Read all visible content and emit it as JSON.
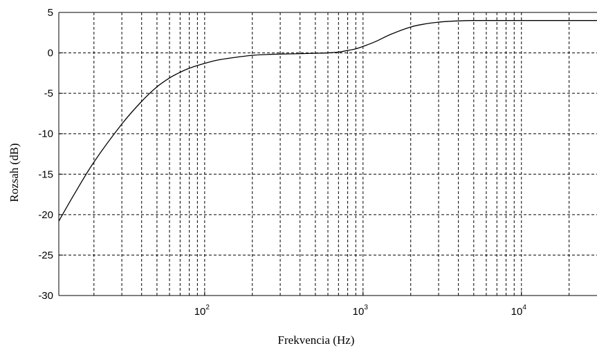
{
  "chart_data": {
    "type": "line",
    "title": "",
    "xlabel": "Frekvencia (Hz)",
    "ylabel": "Rozsah (dB)",
    "xscale": "log",
    "xlim": [
      12,
      30000
    ],
    "ylim": [
      -30,
      5
    ],
    "grid": true,
    "grid_style": "dashed",
    "xticks": [
      {
        "value": 100,
        "base": "10",
        "exp": "2"
      },
      {
        "value": 1000,
        "base": "10",
        "exp": "3"
      },
      {
        "value": 10000,
        "base": "10",
        "exp": "4"
      }
    ],
    "yticks": [
      5,
      0,
      -5,
      -10,
      -15,
      -20,
      -25,
      -30
    ],
    "series": [
      {
        "color": "#000000",
        "x": [
          12,
          15,
          20,
          30,
          40,
          50,
          60,
          70,
          80,
          100,
          120,
          150,
          200,
          250,
          300,
          400,
          500,
          600,
          700,
          800,
          900,
          1000,
          1200,
          1500,
          2000,
          2500,
          3000,
          3500,
          4000,
          5000,
          7000,
          10000,
          20000,
          30000
        ],
        "y": [
          -20.8,
          -17.5,
          -13.5,
          -8.8,
          -6.0,
          -4.2,
          -3.1,
          -2.4,
          -1.9,
          -1.3,
          -0.9,
          -0.6,
          -0.3,
          -0.2,
          -0.15,
          -0.1,
          -0.05,
          0,
          0.1,
          0.3,
          0.5,
          0.8,
          1.4,
          2.3,
          3.2,
          3.6,
          3.8,
          3.9,
          3.95,
          4.0,
          4.0,
          4.0,
          4.0,
          4.0
        ]
      }
    ]
  }
}
